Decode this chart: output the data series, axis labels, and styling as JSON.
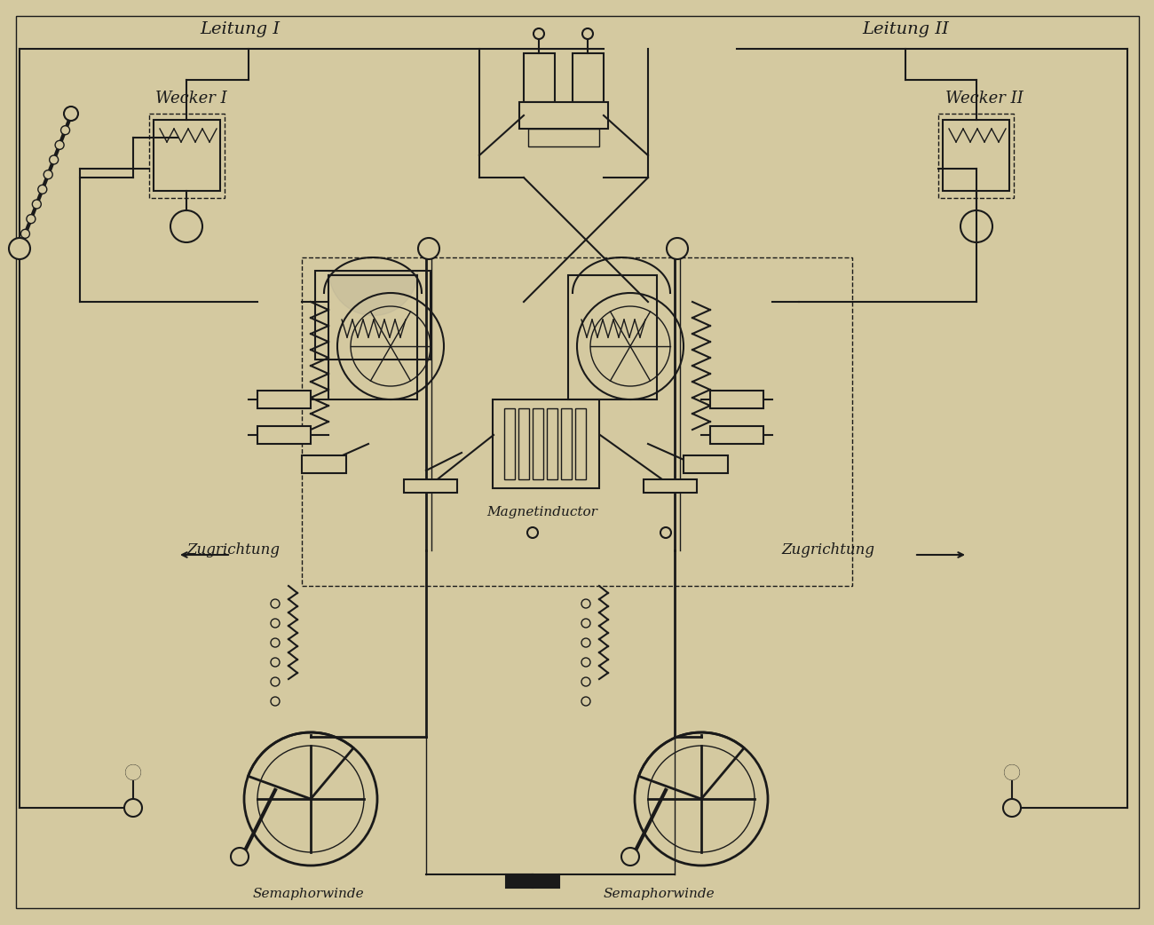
{
  "bg_color": "#d4c9a0",
  "line_color": "#1a1a1a",
  "title": "",
  "labels": {
    "leitung1": "Leitung I",
    "leitung2": "Leitung II",
    "wecker1": "Wecker I",
    "wecker2": "Wecker II",
    "zugrichtung1": "Zugrichtung",
    "zugrichtung2": "Zugrichtung",
    "magnetinductor": "Magnetinductor",
    "semaphorwinde1": "Semaphorwinde",
    "semaphorwinde2": "Semaphorwinde"
  },
  "figsize": [
    13.0,
    10.42
  ],
  "dpi": 100
}
